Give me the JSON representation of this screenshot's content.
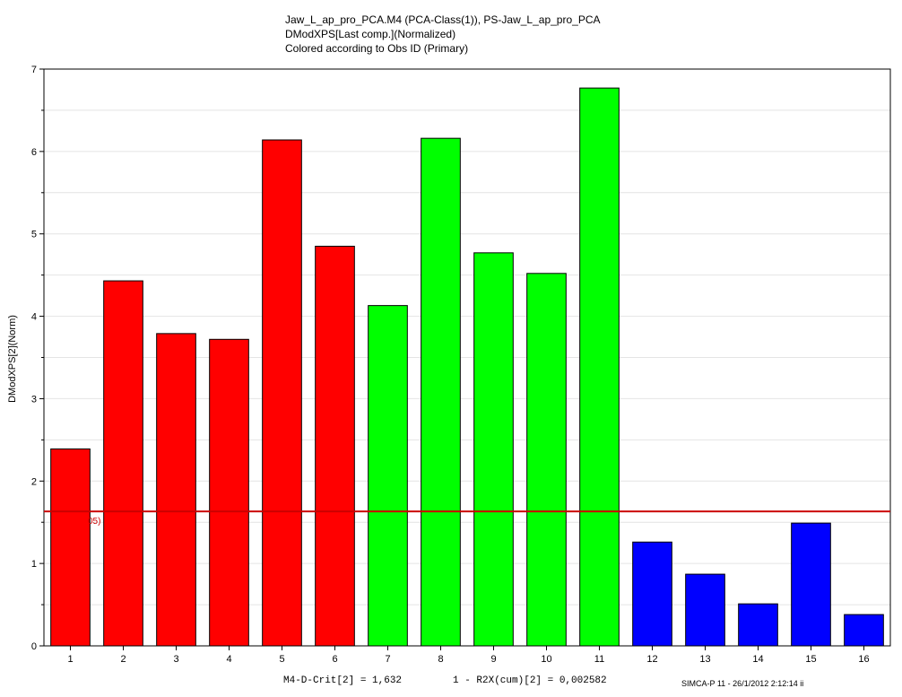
{
  "title_lines": [
    "Jaw_L_ap_pro_PCA.M4 (PCA-Class(1)), PS-Jaw_L_ap_pro_PCA",
    "DModXPS[Last comp.](Normalized)",
    "Colored according to Obs ID (Primary)"
  ],
  "footer": {
    "crit_label": "M4-D-Crit[2] = 1,632",
    "r2x_label": "1 - R2X(cum)[2] = 0,002582",
    "stamp": "SIMCA-P 11 - 26/1/2012 2:12:14 ii"
  },
  "crit_line_label": "05)",
  "chart_data": {
    "type": "bar",
    "categories": [
      "1",
      "2",
      "3",
      "4",
      "5",
      "6",
      "7",
      "8",
      "9",
      "10",
      "11",
      "12",
      "13",
      "14",
      "15",
      "16"
    ],
    "values": [
      2.39,
      4.43,
      3.79,
      3.72,
      6.14,
      4.85,
      4.13,
      6.16,
      4.77,
      4.52,
      6.77,
      1.26,
      0.87,
      0.51,
      1.49,
      0.38
    ],
    "colors": [
      "#ff0000",
      "#ff0000",
      "#ff0000",
      "#ff0000",
      "#ff0000",
      "#ff0000",
      "#00ff00",
      "#00ff00",
      "#00ff00",
      "#00ff00",
      "#00ff00",
      "#0000ff",
      "#0000ff",
      "#0000ff",
      "#0000ff",
      "#0000ff"
    ],
    "ylabel": "DModXPS[2](Norm)",
    "xlabel": "",
    "ylim": [
      0,
      7
    ],
    "yticks": [
      0,
      1,
      2,
      3,
      4,
      5,
      6,
      7
    ],
    "critical_line": 1.632,
    "critical_line_color": "#cc0000",
    "grid": true
  }
}
